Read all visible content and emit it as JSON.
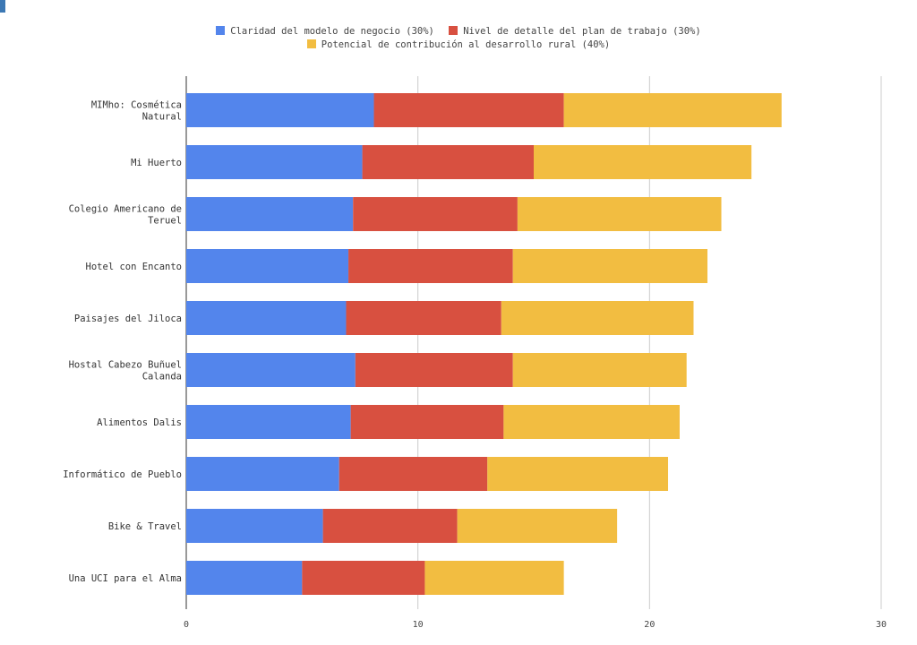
{
  "chart_data": {
    "type": "bar",
    "orientation": "horizontal",
    "stacked": true,
    "categories": [
      "MIMho: Cosmética Natural",
      "Mi Huerto",
      "Colegio Americano de Teruel",
      "Hotel con Encanto",
      "Paisajes del Jiloca",
      "Hostal Cabezo Buñuel Calanda",
      "Alimentos Dalis",
      "Informático de Pueblo",
      "Bike & Travel",
      "Una UCI para el Alma"
    ],
    "series": [
      {
        "name": "Claridad del modelo de negocio (30%)",
        "color": "#5385ec",
        "values": [
          8.1,
          7.6,
          7.2,
          7.0,
          6.9,
          7.3,
          7.1,
          6.6,
          5.9,
          5.0
        ]
      },
      {
        "name": "Nivel de detalle del plan de trabajo (30%)",
        "color": "#d85040",
        "values": [
          8.2,
          7.4,
          7.1,
          7.1,
          6.7,
          6.8,
          6.6,
          6.4,
          5.8,
          5.3
        ]
      },
      {
        "name": "Potencial de contribución al desarrollo rural (40%)",
        "color": "#f2bd41",
        "values": [
          9.4,
          9.4,
          8.8,
          8.4,
          8.3,
          7.5,
          7.6,
          7.8,
          6.9,
          6.0
        ]
      }
    ],
    "xlim": [
      0,
      30
    ],
    "xticks": [
      0,
      10,
      20,
      30
    ],
    "grid": true,
    "legend_position": "top",
    "title": "",
    "xlabel": "",
    "ylabel": ""
  }
}
